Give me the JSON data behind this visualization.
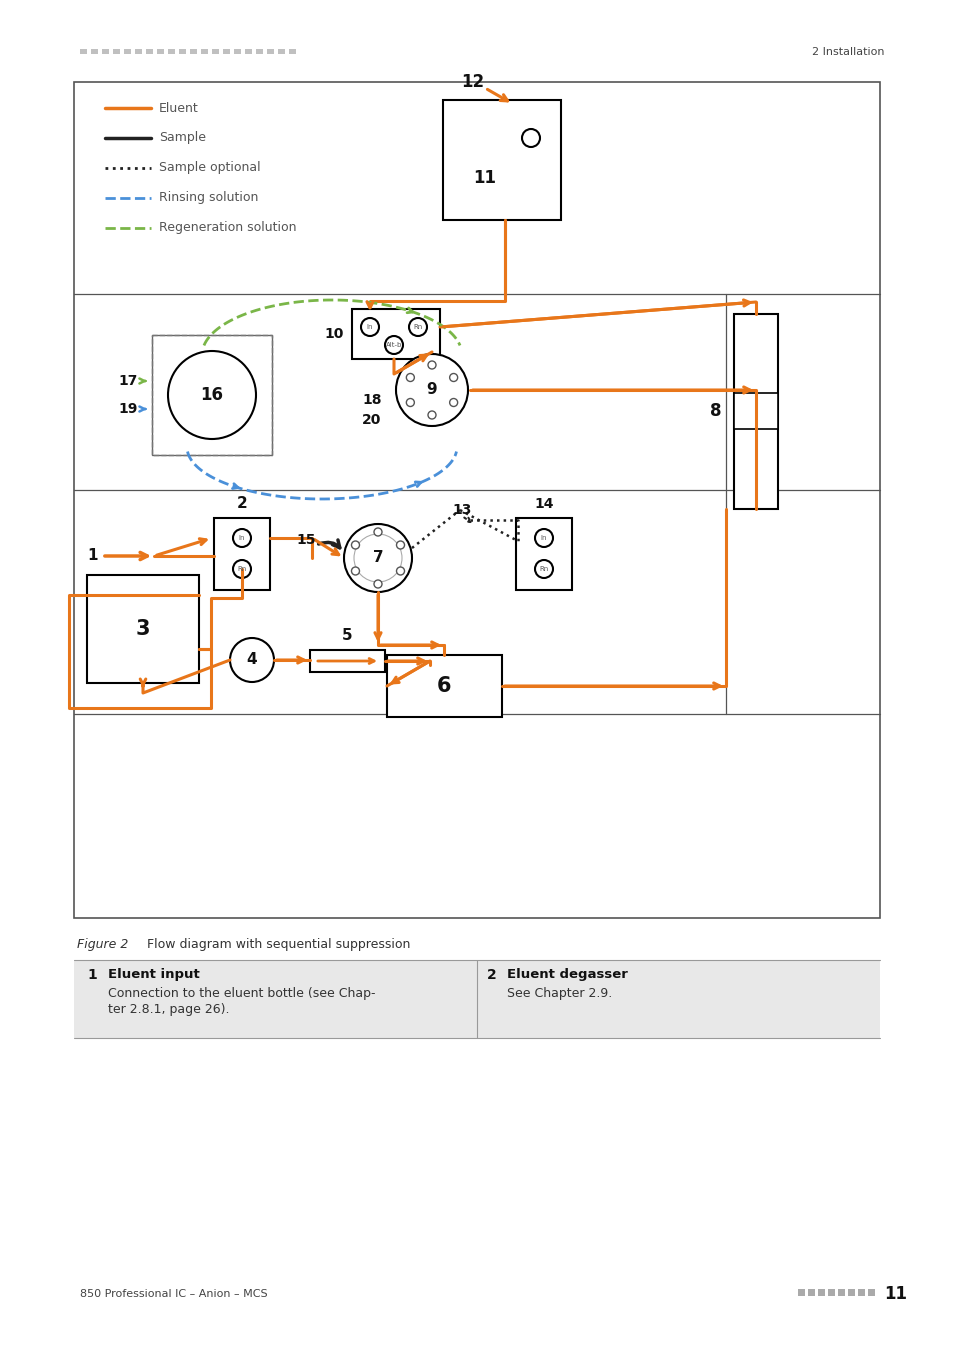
{
  "page_header_right": "2 Installation",
  "page_footer_left": "850 Professional IC – Anion – MCS",
  "page_number": "11",
  "figure_caption_italic": "Figure 2",
  "figure_caption_normal": "    Flow diagram with sequential suppression",
  "legend_items": [
    {
      "label": "Eluent",
      "color": "#E8761A",
      "style": "solid",
      "lw": 2.5
    },
    {
      "label": "Sample",
      "color": "#1a1a1a",
      "style": "solid",
      "lw": 2.5
    },
    {
      "label": "Sample optional",
      "color": "#1a1a1a",
      "style": "dotted",
      "lw": 2.0
    },
    {
      "label": "Rinsing solution",
      "color": "#4a90d9",
      "style": "dashed",
      "lw": 2.0
    },
    {
      "label": "Regeneration solution",
      "color": "#7ab648",
      "style": "dashed",
      "lw": 2.0
    }
  ],
  "table_row1_num": "1",
  "table_row1_title": "Eluent input",
  "table_row1_body1": "Connection to the eluent bottle (see Chap-",
  "table_row1_body2": "ter 2.8.1, page 26).",
  "table_row2_num": "2",
  "table_row2_title": "Eluent degasser",
  "table_row2_body": "See Chapter 2.9.",
  "eluent_color": "#E8761A",
  "sample_color": "#222222",
  "rinse_color": "#4a90d9",
  "regen_color": "#7ab648",
  "label_color": "#1a1a1a",
  "bg": "#ffffff",
  "gray_dash": "#c0c0c0",
  "border_color": "#555555",
  "table_bg": "#e8e8e8"
}
